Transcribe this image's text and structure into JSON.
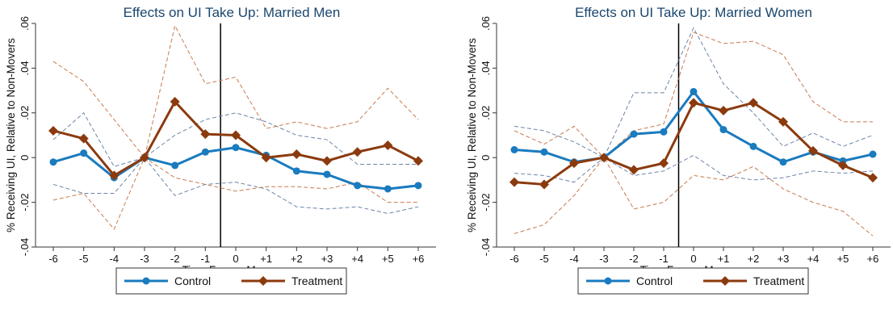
{
  "chart_data": [
    {
      "type": "line",
      "title": "Effects on UI Take Up: Married Men",
      "xlabel": "Time From a Move",
      "ylabel": "% Receiving UI, Relative to Non-Movers",
      "categories": [
        "-6",
        "-5",
        "-4",
        "-3",
        "-2",
        "-1",
        "0",
        "+1",
        "+2",
        "+3",
        "+4",
        "+5",
        "+6"
      ],
      "x": [
        -6,
        -5,
        -4,
        -3,
        -2,
        -1,
        0,
        1,
        2,
        3,
        4,
        5,
        6
      ],
      "ylim": [
        -0.04,
        0.06
      ],
      "yticks": [
        -0.04,
        -0.02,
        0,
        0.02,
        0.04,
        0.06
      ],
      "ytick_labels": [
        "-.04",
        "-.02",
        "0",
        ".02",
        ".04",
        ".06"
      ],
      "vline_x": -0.5,
      "grid": false,
      "legend_position": "bottom",
      "series": [
        {
          "name": "Control",
          "color": "#1a7bbf",
          "marker": "circle",
          "values": [
            -0.002,
            0.002,
            -0.009,
            0.0,
            -0.0035,
            0.0025,
            0.0045,
            0.001,
            -0.006,
            -0.0075,
            -0.0125,
            -0.014,
            -0.0125
          ],
          "ci_lower": [
            -0.012,
            -0.016,
            -0.016,
            0.0,
            -0.017,
            -0.012,
            -0.011,
            -0.014,
            -0.022,
            -0.023,
            -0.022,
            -0.025,
            -0.022
          ],
          "ci_upper": [
            0.008,
            0.02,
            -0.004,
            0.0,
            0.01,
            0.017,
            0.02,
            0.016,
            0.01,
            0.008,
            -0.003,
            -0.003,
            -0.003
          ]
        },
        {
          "name": "Treatment",
          "color": "#8b3a0e",
          "marker": "diamond",
          "values": [
            0.012,
            0.0085,
            -0.008,
            0.0,
            0.025,
            0.0105,
            0.01,
            0.0,
            0.0015,
            -0.0015,
            0.0025,
            0.0055,
            -0.0015
          ],
          "ci_lower": [
            -0.019,
            -0.016,
            -0.032,
            0.0,
            -0.009,
            -0.012,
            -0.015,
            -0.013,
            -0.013,
            -0.014,
            -0.011,
            -0.02,
            -0.02
          ],
          "ci_upper": [
            0.043,
            0.034,
            0.017,
            0.0,
            0.059,
            0.033,
            0.036,
            0.013,
            0.016,
            0.013,
            0.016,
            0.031,
            0.017
          ]
        }
      ]
    },
    {
      "type": "line",
      "title": "Effects on UI Take Up: Married Women",
      "xlabel": "Time From a Move",
      "ylabel": "% Receiving UI, Relative to Non-Movers",
      "categories": [
        "-6",
        "-5",
        "-4",
        "-3",
        "-2",
        "-1",
        "0",
        "+1",
        "+2",
        "+3",
        "+4",
        "+5",
        "+6"
      ],
      "x": [
        -6,
        -5,
        -4,
        -3,
        -2,
        -1,
        0,
        1,
        2,
        3,
        4,
        5,
        6
      ],
      "ylim": [
        -0.04,
        0.06
      ],
      "yticks": [
        -0.04,
        -0.02,
        0,
        0.02,
        0.04,
        0.06
      ],
      "ytick_labels": [
        "-.04",
        "-.02",
        "0",
        ".02",
        ".04",
        ".06"
      ],
      "vline_x": -0.5,
      "grid": false,
      "legend_position": "bottom",
      "series": [
        {
          "name": "Control",
          "color": "#1a7bbf",
          "marker": "circle",
          "values": [
            0.0035,
            0.0025,
            -0.002,
            0.0,
            0.0105,
            0.0115,
            0.0295,
            0.0125,
            0.005,
            -0.002,
            0.0025,
            -0.0015,
            0.0015
          ],
          "ci_lower": [
            -0.007,
            -0.008,
            -0.011,
            0.0,
            -0.008,
            -0.006,
            0.001,
            -0.008,
            -0.01,
            -0.009,
            -0.006,
            -0.007,
            -0.006
          ],
          "ci_upper": [
            0.014,
            0.012,
            0.007,
            0.0,
            0.029,
            0.029,
            0.058,
            0.033,
            0.02,
            0.005,
            0.011,
            0.005,
            0.01
          ]
        },
        {
          "name": "Treatment",
          "color": "#8b3a0e",
          "marker": "diamond",
          "values": [
            -0.011,
            -0.012,
            -0.0025,
            0.0,
            -0.0055,
            -0.0025,
            0.0245,
            0.021,
            0.0245,
            0.016,
            0.003,
            -0.0035,
            -0.009
          ],
          "ci_lower": [
            -0.034,
            -0.03,
            -0.017,
            0.0,
            -0.023,
            -0.02,
            -0.008,
            -0.01,
            -0.004,
            -0.014,
            -0.02,
            -0.024,
            -0.035
          ],
          "ci_upper": [
            0.012,
            0.006,
            0.014,
            0.0,
            0.012,
            0.015,
            0.056,
            0.051,
            0.052,
            0.046,
            0.025,
            0.016,
            0.016
          ]
        }
      ]
    }
  ]
}
